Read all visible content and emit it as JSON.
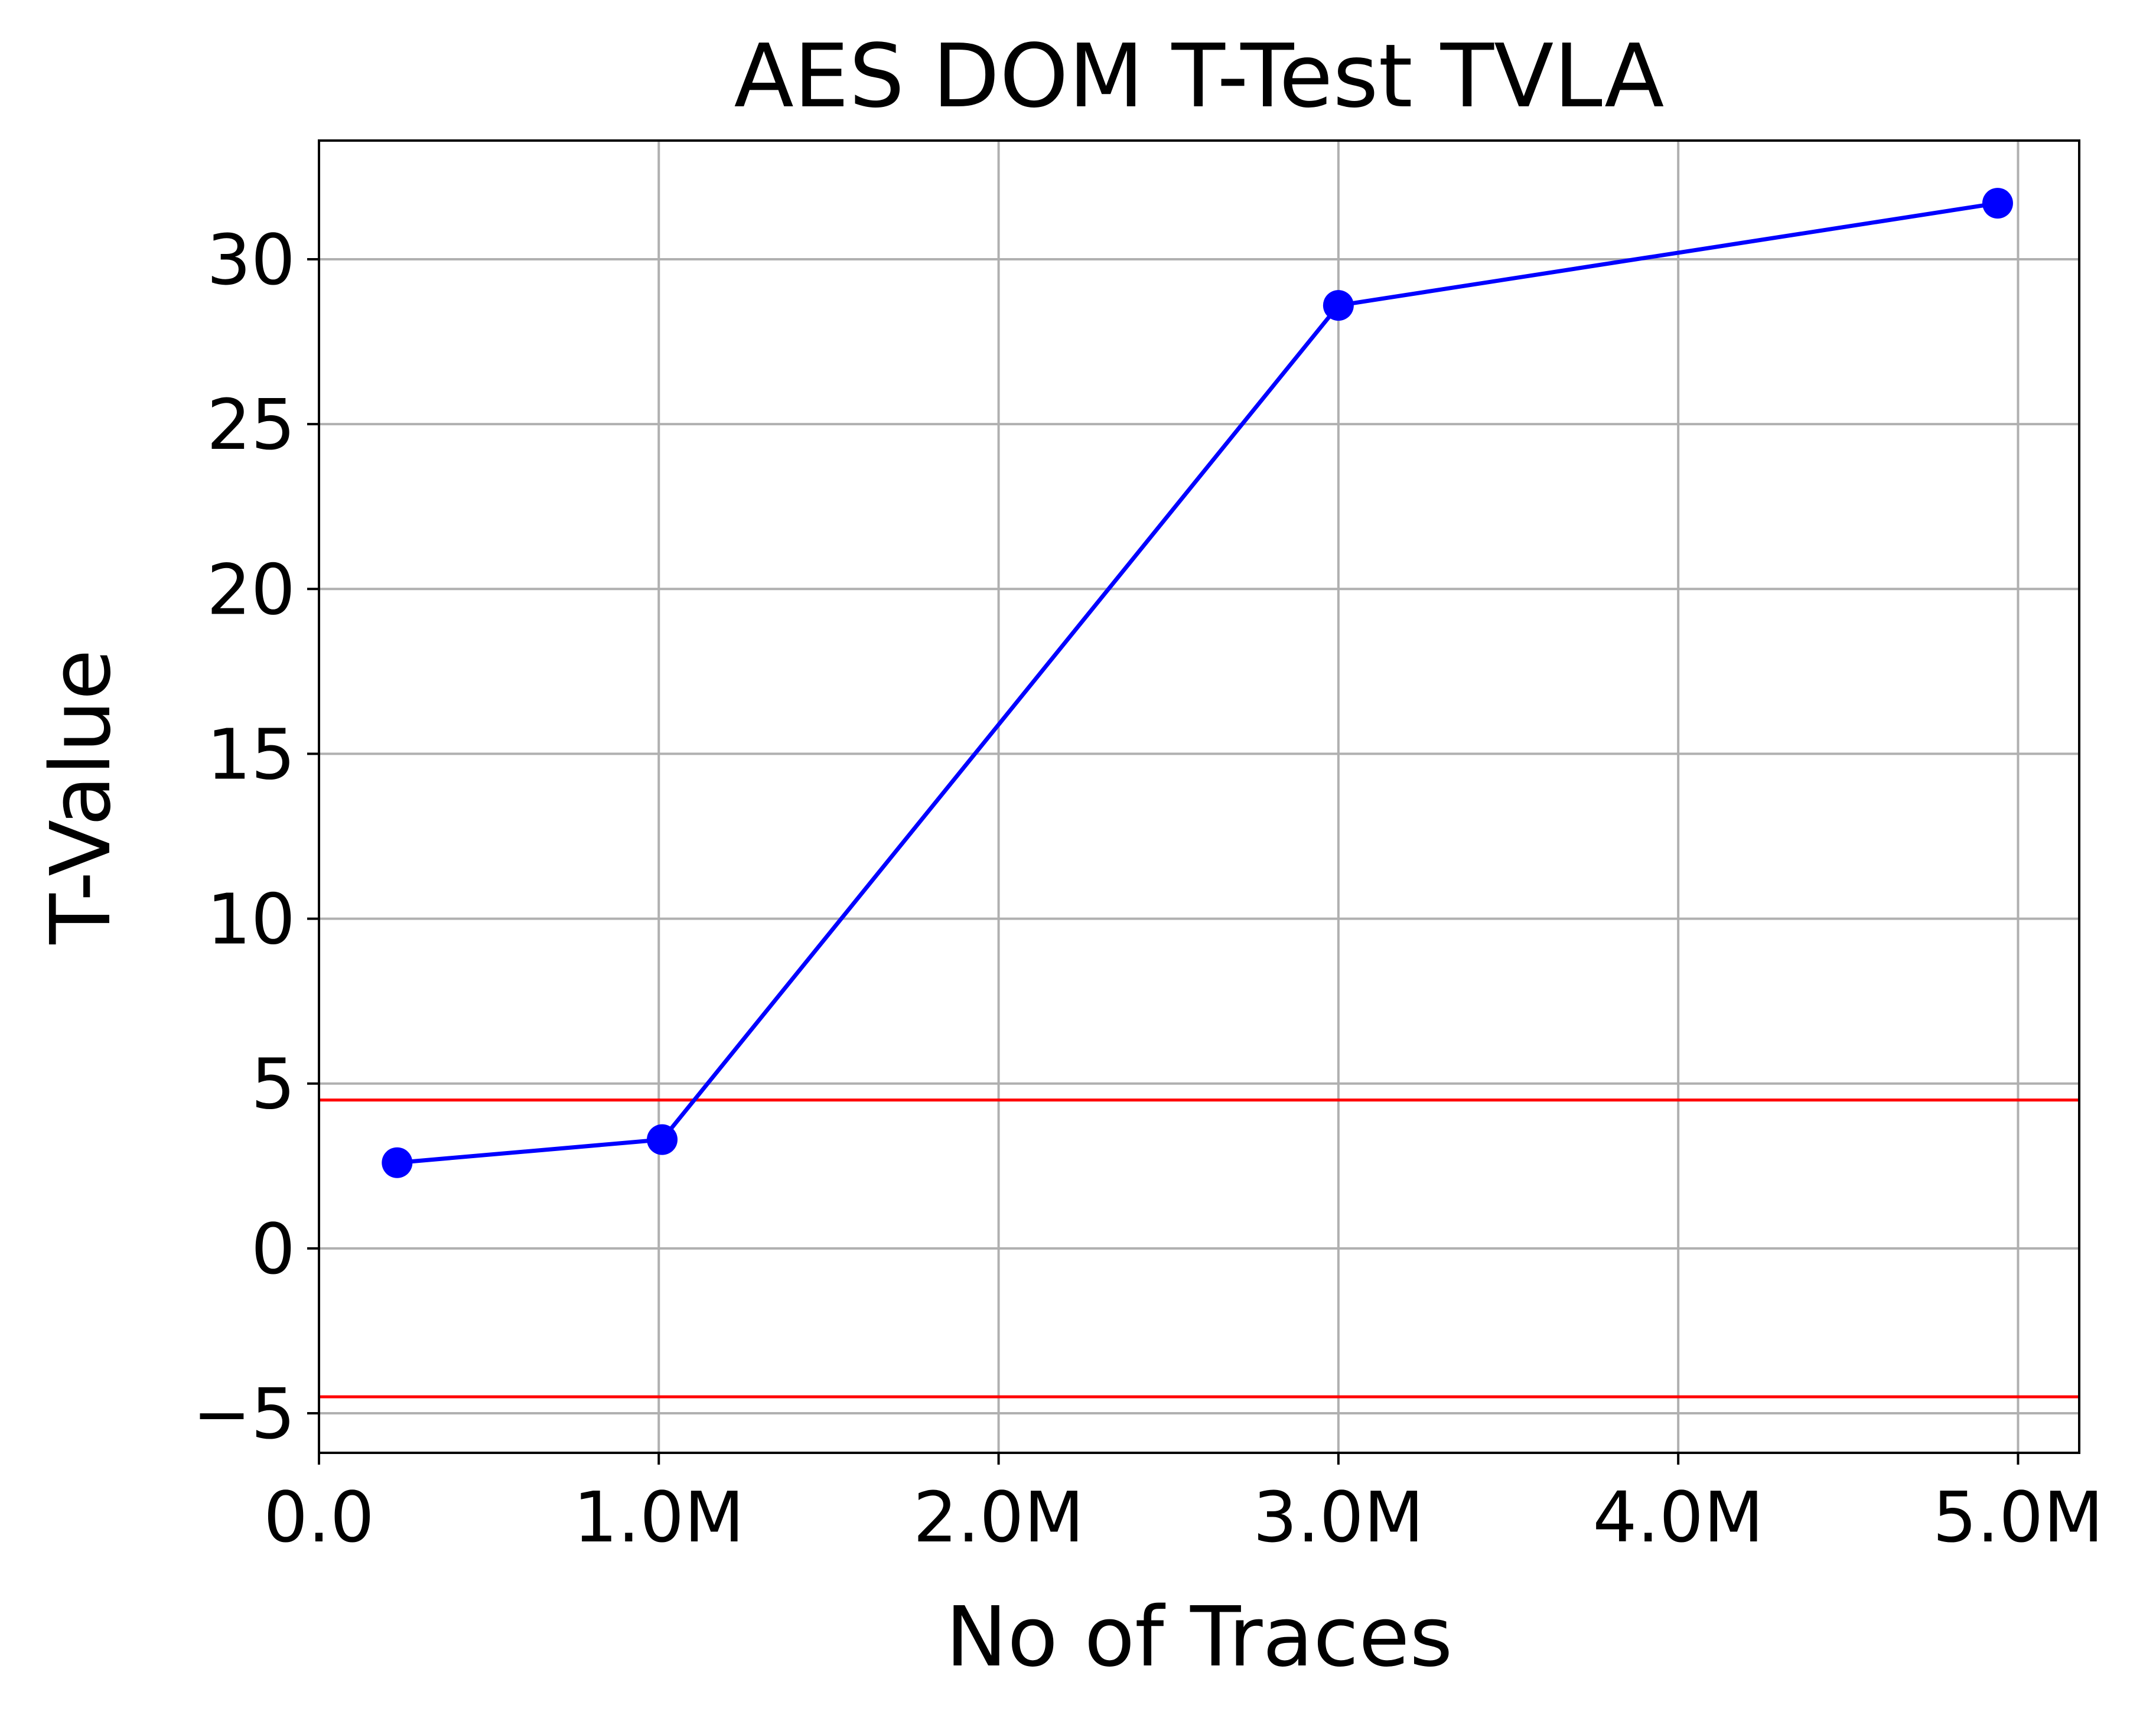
{
  "chart_data": {
    "type": "line",
    "title": "AES DOM T-Test TVLA",
    "xlabel": "No of Traces",
    "ylabel": "T-Value",
    "xlim": [
      0,
      5180000
    ],
    "ylim": [
      -6.2,
      33.6
    ],
    "grid": true,
    "x_ticks": [
      {
        "value": 0,
        "label": "0.0"
      },
      {
        "value": 1000000,
        "label": "1.0M"
      },
      {
        "value": 2000000,
        "label": "2.0M"
      },
      {
        "value": 3000000,
        "label": "3.0M"
      },
      {
        "value": 4000000,
        "label": "4.0M"
      },
      {
        "value": 5000000,
        "label": "5.0M"
      }
    ],
    "y_ticks": [
      {
        "value": -5,
        "label": "−5"
      },
      {
        "value": 0,
        "label": "0"
      },
      {
        "value": 5,
        "label": "5"
      },
      {
        "value": 10,
        "label": "10"
      },
      {
        "value": 15,
        "label": "15"
      },
      {
        "value": 20,
        "label": "20"
      },
      {
        "value": 25,
        "label": "25"
      },
      {
        "value": 30,
        "label": "30"
      }
    ],
    "series": [
      {
        "color": "#0000ff",
        "marker": "circle",
        "x": [
          230000,
          1010000,
          3000000,
          4940000
        ],
        "y": [
          2.6,
          3.3,
          28.6,
          31.7
        ]
      }
    ],
    "threshold_lines": [
      {
        "y": 4.5,
        "color": "#ff0000"
      },
      {
        "y": -4.5,
        "color": "#ff0000"
      }
    ],
    "colors": {
      "grid": "#b0b0b0",
      "axes": "#000000"
    }
  }
}
